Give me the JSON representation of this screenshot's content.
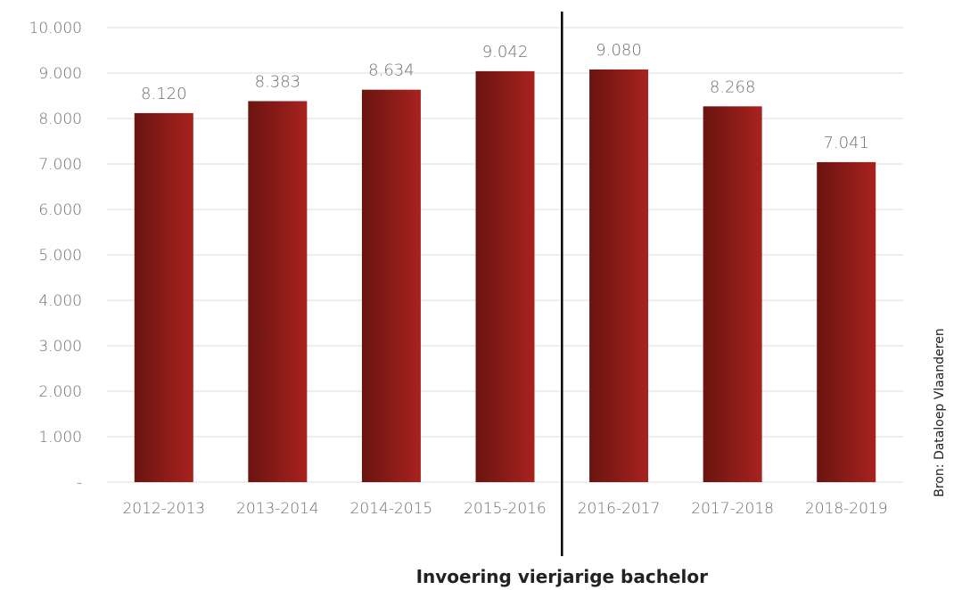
{
  "chart_data": {
    "type": "bar",
    "categories": [
      "2012-2013",
      "2013-2014",
      "2014-2015",
      "2015-2016",
      "2016-2017",
      "2017-2018",
      "2018-2019"
    ],
    "values": [
      8120,
      8383,
      8634,
      9042,
      9080,
      8268,
      7041
    ],
    "value_labels": [
      "8.120",
      "8.383",
      "8.634",
      "9.042",
      "9.080",
      "8.268",
      "7.041"
    ],
    "ylim": [
      0,
      10000
    ],
    "yticks": [
      0,
      1000,
      2000,
      3000,
      4000,
      5000,
      6000,
      7000,
      8000,
      9000,
      10000
    ],
    "ytick_labels": [
      "-",
      "1.000",
      "2.000",
      "3.000",
      "4.000",
      "5.000",
      "6.000",
      "7.000",
      "8.000",
      "9.000",
      "10.000"
    ],
    "grid": true,
    "legend": "none",
    "title": "",
    "xlabel": "",
    "ylabel": "",
    "divider_after_category": "2015-2016",
    "annotation": "Invoering vierjarige bachelor",
    "source": "Bron: Dataloep Vlaanderen"
  },
  "colors": {
    "bar_dark": "#6a1410",
    "bar_light": "#a8221f",
    "grid": "#dcdcdc",
    "divider": "#000000",
    "text": "#6e6e6e"
  }
}
